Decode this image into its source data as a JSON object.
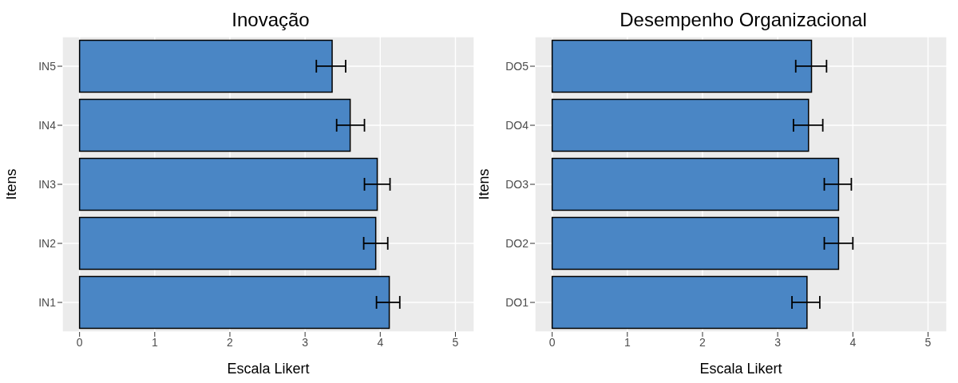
{
  "chart_data": [
    {
      "type": "bar",
      "orientation": "horizontal",
      "title": "Inovação",
      "xlabel": "Escala Likert",
      "ylabel": "Itens",
      "categories": [
        "IN5",
        "IN4",
        "IN3",
        "IN2",
        "IN1"
      ],
      "values": [
        3.36,
        3.6,
        3.96,
        3.94,
        4.12
      ],
      "color": "#4a86c5",
      "errors": [
        [
          3.15,
          3.54
        ],
        [
          3.42,
          3.79
        ],
        [
          3.79,
          4.13
        ],
        [
          3.78,
          4.1
        ],
        [
          3.95,
          4.26
        ]
      ],
      "xlim": [
        -0.23,
        5.25
      ],
      "xticks": [
        0,
        1,
        2,
        3,
        4,
        5
      ],
      "grid": true
    },
    {
      "type": "bar",
      "orientation": "horizontal",
      "title": "Desempenho Organizacional",
      "xlabel": "Escala Likert",
      "ylabel": "Itens",
      "categories": [
        "DO5",
        "DO4",
        "DO3",
        "DO2",
        "DO1"
      ],
      "values": [
        3.45,
        3.41,
        3.81,
        3.81,
        3.39
      ],
      "color": "#4a86c5",
      "errors": [
        [
          3.24,
          3.65
        ],
        [
          3.21,
          3.6
        ],
        [
          3.62,
          3.98
        ],
        [
          3.62,
          4.0
        ],
        [
          3.19,
          3.56
        ]
      ],
      "xlim": [
        -0.23,
        5.25
      ],
      "xticks": [
        0,
        1,
        2,
        3,
        4,
        5
      ],
      "grid": true
    }
  ]
}
